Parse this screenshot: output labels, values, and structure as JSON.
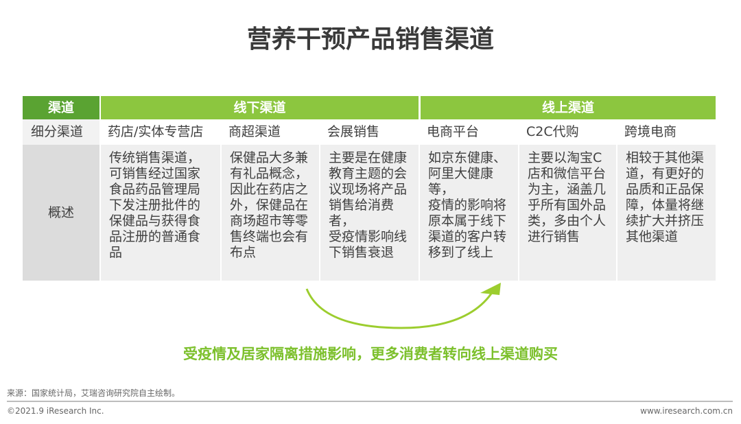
{
  "title": "营养干预产品销售渠道",
  "colors": {
    "header_dark": "#5aa332",
    "header_light": "#8cc63f",
    "label_gray": "#dcdcdc",
    "cell_gray": "#efefef",
    "arrow": "#9ccd2e",
    "caption": "#7cc02c"
  },
  "table": {
    "header": {
      "label": "渠道",
      "offline": "线下渠道",
      "online": "线上渠道"
    },
    "sub_label": "细分渠道",
    "desc_label": "概述",
    "channels": [
      {
        "name": "药店/实体专营店",
        "desc": "传统销售渠道，\n可销售经过国家\n食品药品管理局\n下发注册批件的\n保健品与获得食\n品注册的普通食\n品"
      },
      {
        "name": "商超渠道",
        "desc": "保健品大多兼\n有礼品概念，\n因此在药店之\n外，保健品在\n商场超市等零\n售终端也会有\n布点"
      },
      {
        "name": "会展销售",
        "desc": "主要是在健康\n教育主题的会\n议现场将产品\n销售给消费者，\n受疫情影响线\n下销售衰退"
      },
      {
        "name": "电商平台",
        "desc": "如京东健康、\n阿里大健康等，\n疫情的影响将\n原本属于线下\n渠道的客户转\n移到了线上"
      },
      {
        "name": "C2C代购",
        "desc": "主要以淘宝C\n店和微信平台\n为主，涵盖几\n乎所有国外品\n类，多由个人\n进行销售"
      },
      {
        "name": "跨境电商",
        "desc": "相较于其他渠\n道，有更好的\n品质和正品保\n障，体量将继\n续扩大并挤压\n其他渠道"
      }
    ]
  },
  "caption": "受疫情及居家隔离措施影响，更多消费者转向线上渠道购买",
  "footer": {
    "source": "来源：国家统计局，艾瑞咨询研究院自主绘制。",
    "copyright": "©2021.9 iResearch Inc.",
    "website": "www.iresearch.com.cn"
  }
}
